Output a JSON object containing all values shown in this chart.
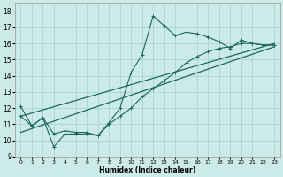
{
  "xlabel": "Humidex (Indice chaleur)",
  "xlim": [
    -0.5,
    23.5
  ],
  "ylim": [
    9,
    18.5
  ],
  "yticks": [
    9,
    10,
    11,
    12,
    13,
    14,
    15,
    16,
    17,
    18
  ],
  "xticks": [
    0,
    1,
    2,
    3,
    4,
    5,
    6,
    7,
    8,
    9,
    10,
    11,
    12,
    13,
    14,
    15,
    16,
    17,
    18,
    19,
    20,
    21,
    22,
    23
  ],
  "bg_color": "#cceae7",
  "grid_color": "#aad4d0",
  "line_color": "#1a6b5a",
  "wiggly_x": [
    0,
    1,
    2,
    3,
    4,
    5,
    6,
    7,
    8,
    9,
    10,
    11,
    12,
    13,
    14,
    15,
    16,
    17,
    18,
    19,
    20,
    21,
    22,
    23
  ],
  "wiggly_y": [
    12.1,
    10.9,
    11.4,
    9.6,
    10.4,
    10.4,
    10.4,
    10.3,
    11.1,
    12.0,
    14.2,
    15.3,
    17.7,
    17.1,
    16.5,
    16.7,
    16.6,
    16.4,
    16.1,
    15.7,
    16.2,
    16.0,
    15.9,
    15.9
  ],
  "trend1_x": [
    0,
    23
  ],
  "trend1_y": [
    11.5,
    16.0
  ],
  "trend2_x": [
    0,
    23
  ],
  "trend2_y": [
    10.5,
    15.8
  ],
  "smooth_x": [
    0,
    1,
    2,
    3,
    4,
    5,
    6,
    7,
    8,
    9,
    10,
    11,
    12,
    13,
    14,
    15,
    16,
    17,
    18,
    19,
    20,
    21,
    22,
    23
  ],
  "smooth_y": [
    11.5,
    10.9,
    11.4,
    10.4,
    10.6,
    10.5,
    10.5,
    10.3,
    11.0,
    11.5,
    12.0,
    12.7,
    13.2,
    13.7,
    14.2,
    14.8,
    15.2,
    15.5,
    15.7,
    15.8,
    16.0,
    16.0,
    15.9,
    15.9
  ]
}
